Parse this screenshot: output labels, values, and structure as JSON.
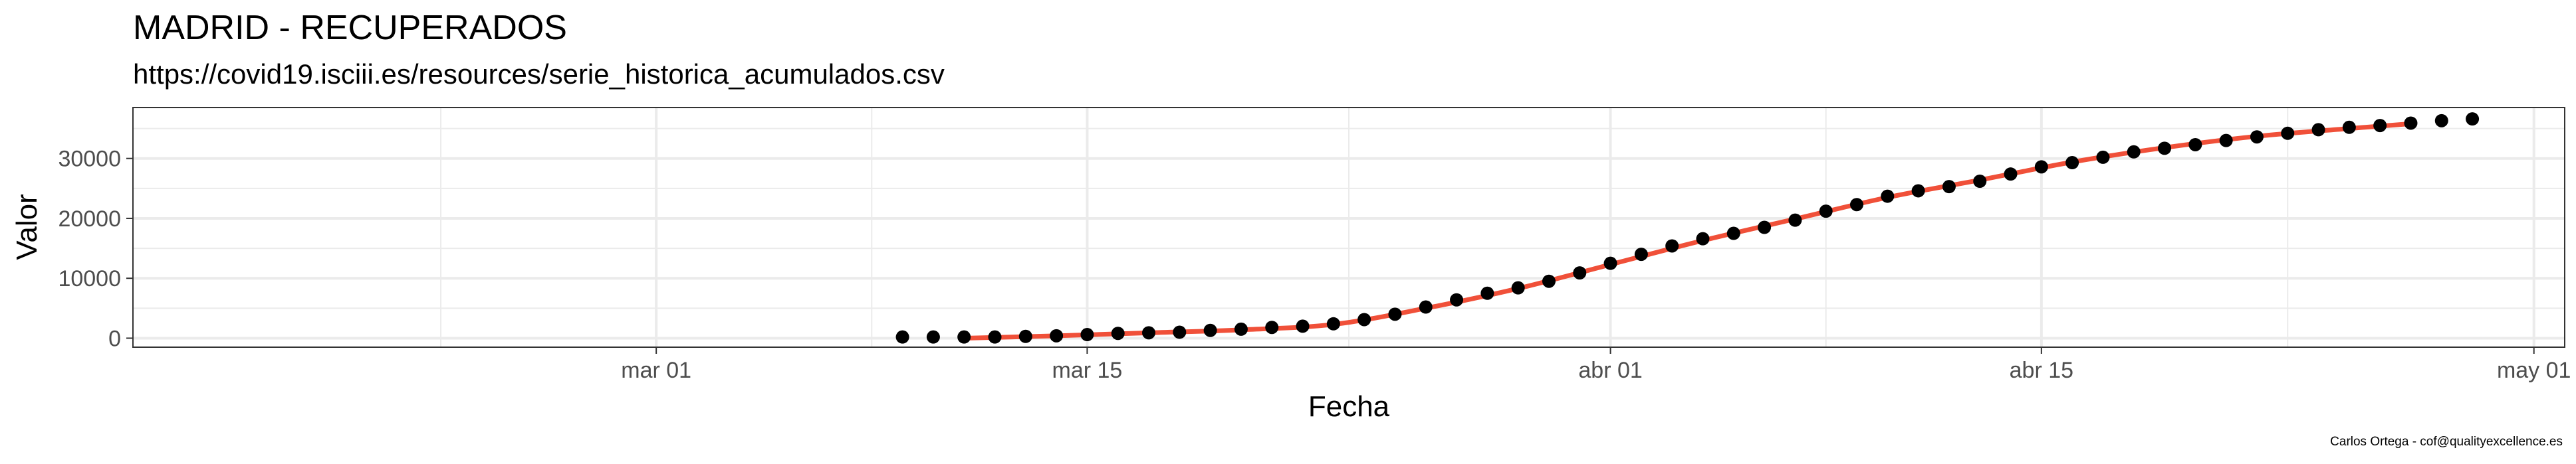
{
  "title": "MADRID - RECUPERADOS",
  "subtitle": "https://covid19.isciii.es/resources/serie_historica_acumulados.csv",
  "caption": "Carlos Ortega - cof@qualityexcellence.es",
  "chart_data": {
    "type": "scatter",
    "xlabel": "Fecha",
    "ylabel": "Valor",
    "x_range": [
      "2020-02-13",
      "2020-05-02"
    ],
    "ylim": [
      -1500,
      38500
    ],
    "x_ticks": [
      {
        "date": "2020-03-01",
        "label": "mar 01"
      },
      {
        "date": "2020-03-15",
        "label": "mar 15"
      },
      {
        "date": "2020-04-01",
        "label": "abr 01"
      },
      {
        "date": "2020-04-15",
        "label": "abr 15"
      },
      {
        "date": "2020-05-01",
        "label": "may 01"
      }
    ],
    "y_ticks": [
      0,
      10000,
      20000,
      30000
    ],
    "grid": true,
    "colors": {
      "points": "#000000",
      "trend": "#F05039",
      "grid": "#EBEBEB",
      "panel_border": "#333333"
    },
    "series": [
      {
        "type": "points",
        "x": [
          "2020-03-09",
          "2020-03-10",
          "2020-03-11",
          "2020-03-12",
          "2020-03-13",
          "2020-03-14",
          "2020-03-15",
          "2020-03-16",
          "2020-03-17",
          "2020-03-18",
          "2020-03-19",
          "2020-03-20",
          "2020-03-21",
          "2020-03-22",
          "2020-03-23",
          "2020-03-24",
          "2020-03-25",
          "2020-03-26",
          "2020-03-27",
          "2020-03-28",
          "2020-03-29",
          "2020-03-30",
          "2020-03-31",
          "2020-04-01",
          "2020-04-02",
          "2020-04-03",
          "2020-04-04",
          "2020-04-05",
          "2020-04-06",
          "2020-04-07",
          "2020-04-08",
          "2020-04-09",
          "2020-04-10",
          "2020-04-11",
          "2020-04-12",
          "2020-04-13",
          "2020-04-14",
          "2020-04-15",
          "2020-04-16",
          "2020-04-17",
          "2020-04-18",
          "2020-04-19",
          "2020-04-20",
          "2020-04-21",
          "2020-04-22",
          "2020-04-23",
          "2020-04-24",
          "2020-04-25",
          "2020-04-26",
          "2020-04-27",
          "2020-04-28",
          "2020-04-29"
        ],
        "y": [
          200,
          200,
          200,
          200,
          300,
          400,
          600,
          800,
          900,
          1000,
          1300,
          1500,
          1800,
          2000,
          2400,
          3100,
          4000,
          5200,
          6400,
          7500,
          8400,
          9500,
          10900,
          12500,
          14000,
          15400,
          16600,
          17500,
          18500,
          19700,
          21200,
          22300,
          23700,
          24600,
          25300,
          26200,
          27400,
          28600,
          29300,
          30200,
          31100,
          31700,
          32300,
          33000,
          33600,
          34200,
          34800,
          35200,
          35500,
          35900,
          36300,
          36600
        ]
      },
      {
        "type": "trend",
        "x": [
          "2020-03-11",
          "2020-03-14",
          "2020-03-17",
          "2020-03-20",
          "2020-03-23",
          "2020-03-26",
          "2020-03-29",
          "2020-04-01",
          "2020-04-04",
          "2020-04-07",
          "2020-04-10",
          "2020-04-13",
          "2020-04-16",
          "2020-04-19",
          "2020-04-22",
          "2020-04-25",
          "2020-04-27"
        ],
        "y": [
          0,
          400,
          900,
          1400,
          2300,
          5000,
          8300,
          12300,
          16300,
          19900,
          23500,
          26400,
          29400,
          31800,
          33700,
          35000,
          35800
        ]
      }
    ]
  }
}
